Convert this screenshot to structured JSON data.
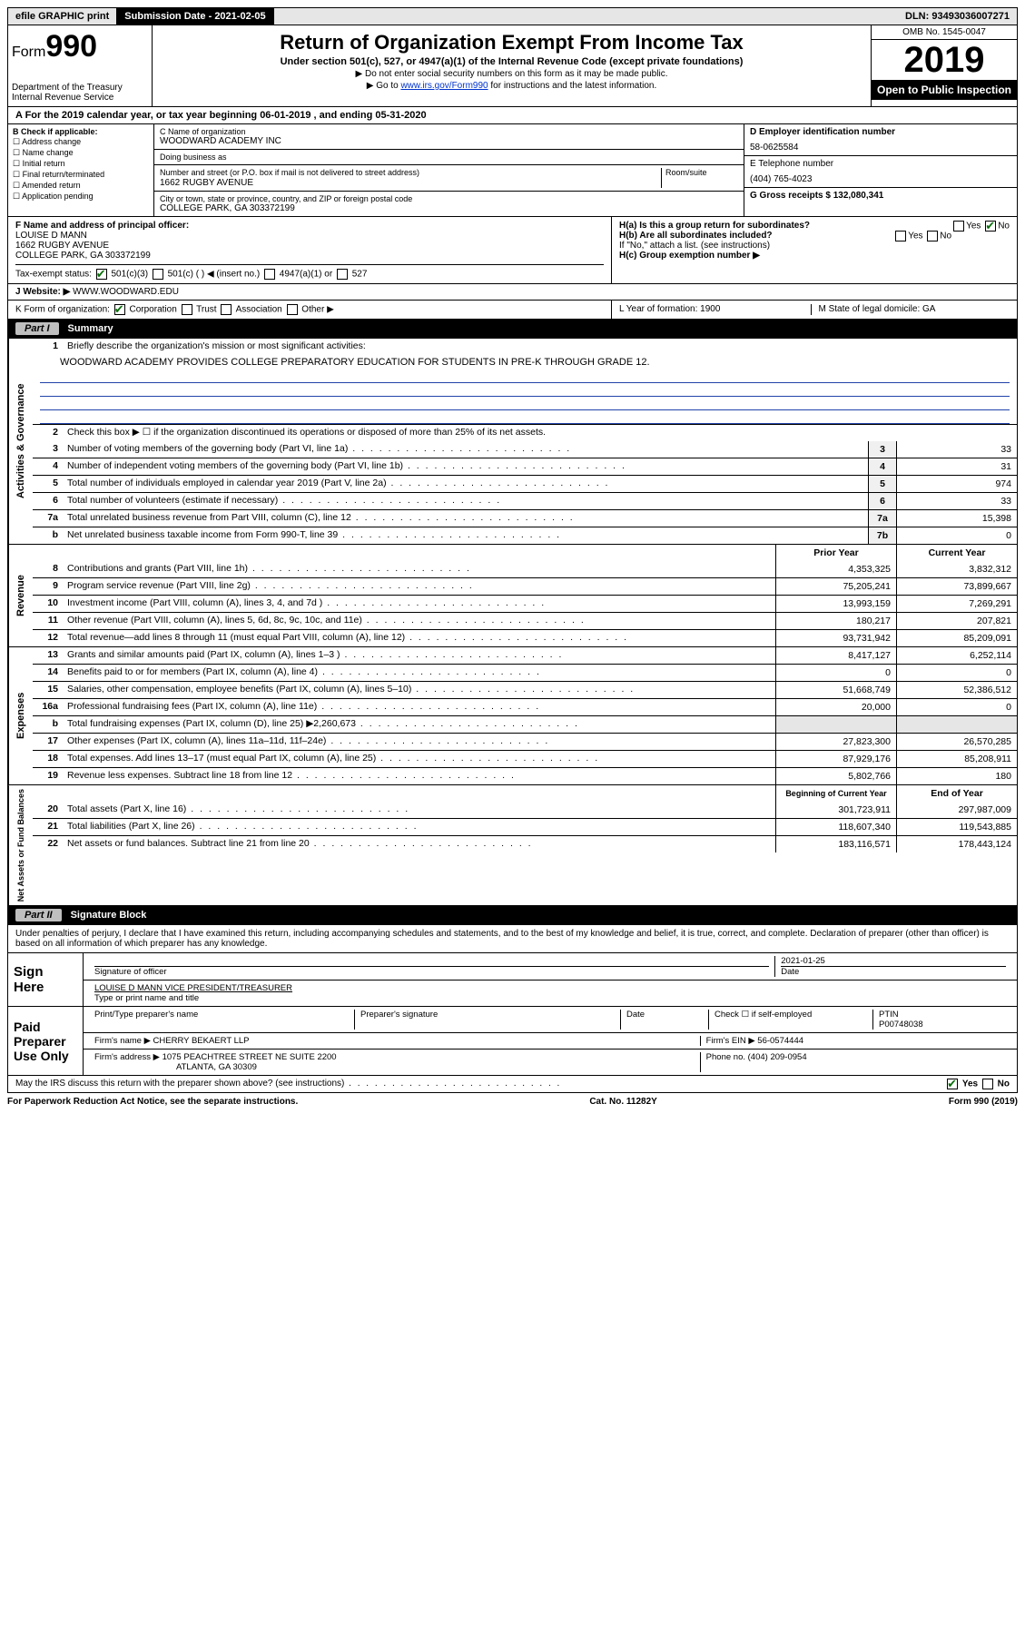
{
  "topbar": {
    "efile": "efile GRAPHIC print",
    "submission_label": "Submission Date - 2021-02-05",
    "dln_label": "DLN: 93493036007271"
  },
  "header": {
    "form_label": "Form",
    "form_number": "990",
    "dept": "Department of the Treasury\nInternal Revenue Service",
    "title": "Return of Organization Exempt From Income Tax",
    "sub": "Under section 501(c), 527, or 4947(a)(1) of the Internal Revenue Code (except private foundations)",
    "note1": "▶ Do not enter social security numbers on this form as it may be made public.",
    "note2_pre": "▶ Go to ",
    "note2_link": "www.irs.gov/Form990",
    "note2_post": " for instructions and the latest information.",
    "omb": "OMB No. 1545-0047",
    "year": "2019",
    "open": "Open to Public Inspection"
  },
  "period": {
    "text": "A For the 2019 calendar year, or tax year beginning 06-01-2019    , and ending 05-31-2020"
  },
  "boxB": {
    "label": "B Check if applicable:",
    "items": [
      "Address change",
      "Name change",
      "Initial return",
      "Final return/terminated",
      "Amended return",
      "Application pending"
    ]
  },
  "boxC": {
    "name_lbl": "C Name of organization",
    "name": "WOODWARD ACADEMY INC",
    "dba_lbl": "Doing business as",
    "dba": "",
    "street_lbl": "Number and street (or P.O. box if mail is not delivered to street address)",
    "room_lbl": "Room/suite",
    "street": "1662 RUGBY AVENUE",
    "city_lbl": "City or town, state or province, country, and ZIP or foreign postal code",
    "city": "COLLEGE PARK, GA  303372199"
  },
  "boxD": {
    "ein_lbl": "D Employer identification number",
    "ein": "58-0625584",
    "tel_lbl": "E Telephone number",
    "tel": "(404) 765-4023",
    "gross_lbl": "G Gross receipts $ 132,080,341"
  },
  "rowFH": {
    "f_lbl": "F  Name and address of principal officer:",
    "f_name": "LOUISE D MANN",
    "f_addr1": "1662 RUGBY AVENUE",
    "f_addr2": "COLLEGE PARK, GA  303372199",
    "ha": "H(a)  Is this a group return for subordinates?",
    "hb": "H(b)  Are all subordinates included?",
    "hnote": "If \"No,\" attach a list. (see instructions)",
    "hc": "H(c)  Group exemption number ▶",
    "yes": "Yes",
    "no": "No"
  },
  "taxstatus": {
    "label": "Tax-exempt status:",
    "o1": "501(c)(3)",
    "o2": "501(c) (   ) ◀ (insert no.)",
    "o3": "4947(a)(1) or",
    "o4": "527"
  },
  "website": {
    "label": "J   Website: ▶",
    "val": "WWW.WOODWARD.EDU"
  },
  "korg": {
    "label": "K Form of organization:",
    "opts": [
      "Corporation",
      "Trust",
      "Association",
      "Other ▶"
    ],
    "l": "L Year of formation: 1900",
    "m": "M State of legal domicile: GA"
  },
  "parts": {
    "p1": "Part I",
    "p1t": "Summary",
    "p2": "Part II",
    "p2t": "Signature Block"
  },
  "summary": {
    "tab1": "Activities & Governance",
    "tab2": "Revenue",
    "tab3": "Expenses",
    "tab4": "Net Assets or Fund Balances",
    "l1": "Briefly describe the organization's mission or most significant activities:",
    "mission": "WOODWARD ACADEMY PROVIDES COLLEGE PREPARATORY EDUCATION FOR STUDENTS IN PRE-K THROUGH GRADE 12.",
    "l2": "Check this box ▶ ☐  if the organization discontinued its operations or disposed of more than 25% of its net assets.",
    "lines_gov": [
      {
        "n": "3",
        "t": "Number of voting members of the governing body (Part VI, line 1a)",
        "b": "3",
        "v": "33"
      },
      {
        "n": "4",
        "t": "Number of independent voting members of the governing body (Part VI, line 1b)",
        "b": "4",
        "v": "31"
      },
      {
        "n": "5",
        "t": "Total number of individuals employed in calendar year 2019 (Part V, line 2a)",
        "b": "5",
        "v": "974"
      },
      {
        "n": "6",
        "t": "Total number of volunteers (estimate if necessary)",
        "b": "6",
        "v": "33"
      },
      {
        "n": "7a",
        "t": "Total unrelated business revenue from Part VIII, column (C), line 12",
        "b": "7a",
        "v": "15,398"
      },
      {
        "n": "b",
        "t": "Net unrelated business taxable income from Form 990-T, line 39",
        "b": "7b",
        "v": "0"
      }
    ],
    "col_prior": "Prior Year",
    "col_curr": "Current Year",
    "lines_rev": [
      {
        "n": "8",
        "t": "Contributions and grants (Part VIII, line 1h)",
        "p": "4,353,325",
        "c": "3,832,312"
      },
      {
        "n": "9",
        "t": "Program service revenue (Part VIII, line 2g)",
        "p": "75,205,241",
        "c": "73,899,667"
      },
      {
        "n": "10",
        "t": "Investment income (Part VIII, column (A), lines 3, 4, and 7d )",
        "p": "13,993,159",
        "c": "7,269,291"
      },
      {
        "n": "11",
        "t": "Other revenue (Part VIII, column (A), lines 5, 6d, 8c, 9c, 10c, and 11e)",
        "p": "180,217",
        "c": "207,821"
      },
      {
        "n": "12",
        "t": "Total revenue—add lines 8 through 11 (must equal Part VIII, column (A), line 12)",
        "p": "93,731,942",
        "c": "85,209,091"
      }
    ],
    "lines_exp": [
      {
        "n": "13",
        "t": "Grants and similar amounts paid (Part IX, column (A), lines 1–3 )",
        "p": "8,417,127",
        "c": "6,252,114"
      },
      {
        "n": "14",
        "t": "Benefits paid to or for members (Part IX, column (A), line 4)",
        "p": "0",
        "c": "0"
      },
      {
        "n": "15",
        "t": "Salaries, other compensation, employee benefits (Part IX, column (A), lines 5–10)",
        "p": "51,668,749",
        "c": "52,386,512"
      },
      {
        "n": "16a",
        "t": "Professional fundraising fees (Part IX, column (A), line 11e)",
        "p": "20,000",
        "c": "0"
      },
      {
        "n": "b",
        "t": "Total fundraising expenses (Part IX, column (D), line 25) ▶2,260,673",
        "p": "",
        "c": "",
        "grey": true
      },
      {
        "n": "17",
        "t": "Other expenses (Part IX, column (A), lines 11a–11d, 11f–24e)",
        "p": "27,823,300",
        "c": "26,570,285"
      },
      {
        "n": "18",
        "t": "Total expenses. Add lines 13–17 (must equal Part IX, column (A), line 25)",
        "p": "87,929,176",
        "c": "85,208,911"
      },
      {
        "n": "19",
        "t": "Revenue less expenses. Subtract line 18 from line 12",
        "p": "5,802,766",
        "c": "180"
      }
    ],
    "col_bcy": "Beginning of Current Year",
    "col_eoy": "End of Year",
    "lines_net": [
      {
        "n": "20",
        "t": "Total assets (Part X, line 16)",
        "p": "301,723,911",
        "c": "297,987,009"
      },
      {
        "n": "21",
        "t": "Total liabilities (Part X, line 26)",
        "p": "118,607,340",
        "c": "119,543,885"
      },
      {
        "n": "22",
        "t": "Net assets or fund balances. Subtract line 21 from line 20",
        "p": "183,116,571",
        "c": "178,443,124"
      }
    ]
  },
  "sig": {
    "perjury": "Under penalties of perjury, I declare that I have examined this return, including accompanying schedules and statements, and to the best of my knowledge and belief, it is true, correct, and complete. Declaration of preparer (other than officer) is based on all information of which preparer has any knowledge.",
    "sign_here": "Sign Here",
    "sig_officer": "Signature of officer",
    "date": "Date",
    "sig_date": "2021-01-25",
    "officer_name": "LOUISE D MANN  VICE PRESIDENT/TREASURER",
    "officer_sub": "Type or print name and title",
    "paid": "Paid Preparer Use Only",
    "prep_name_lbl": "Print/Type preparer's name",
    "prep_sig_lbl": "Preparer's signature",
    "date_lbl": "Date",
    "check_lbl": "Check ☐ if self-employed",
    "ptin_lbl": "PTIN",
    "ptin": "P00748038",
    "firm_name_lbl": "Firm's name    ▶",
    "firm_name": "CHERRY BEKAERT LLP",
    "firm_ein_lbl": "Firm's EIN ▶",
    "firm_ein": "56-0574444",
    "firm_addr_lbl": "Firm's address ▶",
    "firm_addr": "1075 PEACHTREE STREET NE SUITE 2200",
    "firm_city": "ATLANTA, GA  30309",
    "phone_lbl": "Phone no.",
    "phone": "(404) 209-0954",
    "discuss": "May the IRS discuss this return with the preparer shown above? (see instructions)",
    "paperwork": "For Paperwork Reduction Act Notice, see the separate instructions.",
    "cat": "Cat. No. 11282Y",
    "formfoot": "Form 990 (2019)"
  }
}
